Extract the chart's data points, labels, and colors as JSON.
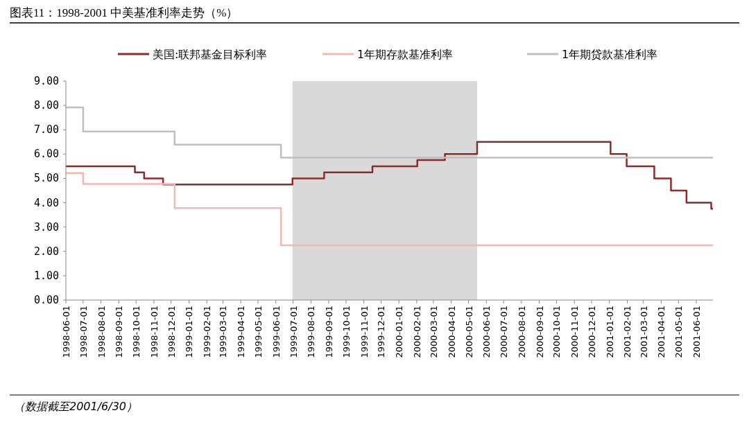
{
  "chart_data": {
    "type": "step",
    "title": "图表11：1998-2001 中美基准利率走势（%）",
    "annotations": [
      "（数据截至2001/6/30）"
    ],
    "legend": "top",
    "grid": false,
    "xlim": [
      "1998-06-01",
      "2001-06-30"
    ],
    "xticks": [
      "1998-06-01",
      "1998-07-01",
      "1998-08-01",
      "1998-09-01",
      "1998-10-01",
      "1998-11-01",
      "1998-12-01",
      "1999-01-01",
      "1999-02-01",
      "1999-03-01",
      "1999-04-01",
      "1999-05-01",
      "1999-06-01",
      "1999-07-01",
      "1999-08-01",
      "1999-09-01",
      "1999-10-01",
      "1999-11-01",
      "1999-12-01",
      "2000-01-01",
      "2000-02-01",
      "2000-03-01",
      "2000-04-01",
      "2000-05-01",
      "2000-06-01",
      "2000-07-01",
      "2000-08-01",
      "2000-09-01",
      "2000-10-01",
      "2000-11-01",
      "2000-12-01",
      "2001-01-01",
      "2001-02-01",
      "2001-03-01",
      "2001-04-01",
      "2001-05-01",
      "2001-06-01"
    ],
    "ylim": [
      0,
      9
    ],
    "yticks": [
      {
        "value": 0,
        "label": "0.00"
      },
      {
        "value": 1,
        "label": "1.00"
      },
      {
        "value": 2,
        "label": "2.00"
      },
      {
        "value": 3,
        "label": "3.00"
      },
      {
        "value": 4,
        "label": "4.00"
      },
      {
        "value": 5,
        "label": "5.00"
      },
      {
        "value": 6,
        "label": "6.00"
      },
      {
        "value": 7,
        "label": "7.00"
      },
      {
        "value": 8,
        "label": "8.00"
      },
      {
        "value": 9,
        "label": "9.00"
      }
    ],
    "bands": [
      {
        "axis": "x",
        "from": "1999-06-30",
        "to": "2000-05-16",
        "color": "#d9d9d9"
      }
    ],
    "series": [
      {
        "name": "美国:联邦基金目标利率",
        "color": "#8b2b2b",
        "x": [
          "1998-06-01",
          "1998-09-29",
          "1998-10-15",
          "1998-11-17",
          "1999-06-30",
          "1999-08-24",
          "1999-11-16",
          "2000-02-02",
          "2000-03-21",
          "2000-05-16",
          "2001-01-03",
          "2001-01-31",
          "2001-03-20",
          "2001-04-18",
          "2001-05-15",
          "2001-06-27",
          "2001-06-30"
        ],
        "values": [
          5.5,
          5.25,
          5.0,
          4.75,
          5.0,
          5.25,
          5.5,
          5.75,
          6.0,
          6.5,
          6.0,
          5.5,
          5.0,
          4.5,
          4.0,
          3.75,
          3.75
        ]
      },
      {
        "name": "1年期存款基准利率",
        "color": "#f2b8b8",
        "x": [
          "1998-06-01",
          "1998-07-01",
          "1998-12-07",
          "1999-06-10",
          "2001-06-30"
        ],
        "values": [
          5.22,
          4.77,
          3.78,
          2.25,
          2.25
        ]
      },
      {
        "name": "1年期贷款基准利率",
        "color": "#bfbfbf",
        "x": [
          "1998-06-01",
          "1998-07-01",
          "1998-12-07",
          "1999-06-10",
          "2001-06-30"
        ],
        "values": [
          7.92,
          6.93,
          6.39,
          5.85,
          5.85
        ]
      }
    ]
  }
}
